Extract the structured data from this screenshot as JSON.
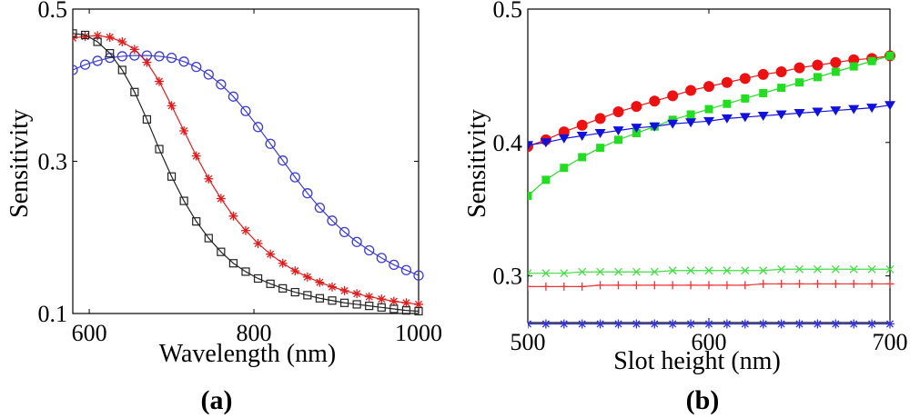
{
  "chart_data": [
    {
      "type": "line",
      "panel_label": "(a)",
      "xlabel": "Wavelength (nm)",
      "ylabel": "Sensitivity",
      "xlim": [
        580,
        1000
      ],
      "ylim": [
        0.1,
        0.5
      ],
      "xticks": [
        600,
        800,
        1000
      ],
      "yticks": [
        0.1,
        0.3,
        0.5
      ],
      "ytick_labels": [
        "0.1",
        "0.3",
        "0.5"
      ],
      "grid": false,
      "series": [
        {
          "color": "#3b3bd6",
          "marker": "circle",
          "x": [
            580,
            595,
            610,
            625,
            640,
            655,
            670,
            685,
            700,
            715,
            730,
            745,
            760,
            775,
            790,
            805,
            820,
            835,
            850,
            865,
            880,
            895,
            910,
            925,
            940,
            955,
            970,
            985,
            1000
          ],
          "values": [
            0.42,
            0.427,
            0.432,
            0.436,
            0.438,
            0.439,
            0.439,
            0.438,
            0.436,
            0.431,
            0.424,
            0.414,
            0.401,
            0.385,
            0.366,
            0.345,
            0.323,
            0.301,
            0.279,
            0.258,
            0.239,
            0.222,
            0.207,
            0.194,
            0.183,
            0.173,
            0.164,
            0.157,
            0.15
          ]
        },
        {
          "color": "#e01c1c",
          "marker": "star",
          "x": [
            580,
            595,
            610,
            625,
            640,
            655,
            670,
            685,
            700,
            715,
            730,
            745,
            760,
            775,
            790,
            805,
            820,
            835,
            850,
            865,
            880,
            895,
            910,
            925,
            940,
            955,
            970,
            985,
            1000
          ],
          "values": [
            0.462,
            0.464,
            0.465,
            0.463,
            0.457,
            0.447,
            0.43,
            0.405,
            0.373,
            0.34,
            0.307,
            0.277,
            0.251,
            0.228,
            0.209,
            0.192,
            0.178,
            0.166,
            0.156,
            0.148,
            0.141,
            0.135,
            0.13,
            0.126,
            0.122,
            0.119,
            0.116,
            0.114,
            0.112
          ]
        },
        {
          "color": "#222222",
          "marker": "square",
          "x": [
            580,
            595,
            610,
            625,
            640,
            655,
            670,
            685,
            700,
            715,
            730,
            745,
            760,
            775,
            790,
            805,
            820,
            835,
            850,
            865,
            880,
            895,
            910,
            925,
            940,
            955,
            970,
            985,
            1000
          ],
          "values": [
            0.468,
            0.466,
            0.457,
            0.442,
            0.42,
            0.391,
            0.355,
            0.316,
            0.28,
            0.248,
            0.221,
            0.199,
            0.181,
            0.166,
            0.155,
            0.146,
            0.139,
            0.133,
            0.128,
            0.124,
            0.12,
            0.117,
            0.114,
            0.112,
            0.11,
            0.108,
            0.106,
            0.104,
            0.103
          ]
        }
      ]
    },
    {
      "type": "line",
      "panel_label": "(b)",
      "xlabel": "Slot height (nm)",
      "ylabel": "Sensitivity",
      "xlim": [
        500,
        700
      ],
      "ylim": [
        0.265,
        0.5
      ],
      "xticks": [
        500,
        600,
        700
      ],
      "yticks": [
        0.3,
        0.4,
        0.5
      ],
      "ytick_labels": [
        "0.3",
        "0.4",
        "0.5"
      ],
      "grid": false,
      "series": [
        {
          "color": "#ee1111",
          "marker": "filled-circle",
          "x": [
            500,
            510,
            520,
            530,
            540,
            550,
            560,
            570,
            580,
            590,
            600,
            610,
            620,
            630,
            640,
            650,
            660,
            670,
            680,
            690,
            700
          ],
          "values": [
            0.397,
            0.402,
            0.408,
            0.413,
            0.418,
            0.423,
            0.427,
            0.431,
            0.435,
            0.439,
            0.442,
            0.445,
            0.448,
            0.451,
            0.453,
            0.456,
            0.458,
            0.46,
            0.462,
            0.463,
            0.465
          ]
        },
        {
          "color": "#22dd22",
          "marker": "filled-square",
          "x": [
            500,
            510,
            520,
            530,
            540,
            550,
            560,
            570,
            580,
            590,
            600,
            610,
            620,
            630,
            640,
            650,
            660,
            670,
            680,
            690,
            700
          ],
          "values": [
            0.36,
            0.372,
            0.381,
            0.389,
            0.396,
            0.402,
            0.407,
            0.412,
            0.417,
            0.421,
            0.425,
            0.429,
            0.433,
            0.437,
            0.441,
            0.445,
            0.449,
            0.453,
            0.457,
            0.461,
            0.465
          ]
        },
        {
          "color": "#1111dd",
          "marker": "filled-triangle-down",
          "x": [
            500,
            510,
            520,
            530,
            540,
            550,
            560,
            570,
            580,
            590,
            600,
            610,
            620,
            630,
            640,
            650,
            660,
            670,
            680,
            690,
            700
          ],
          "values": [
            0.398,
            0.4,
            0.403,
            0.405,
            0.407,
            0.409,
            0.411,
            0.412,
            0.414,
            0.415,
            0.416,
            0.418,
            0.419,
            0.42,
            0.421,
            0.422,
            0.423,
            0.424,
            0.425,
            0.426,
            0.428
          ]
        },
        {
          "color": "#44dd44",
          "marker": "x",
          "x": [
            500,
            510,
            520,
            530,
            540,
            550,
            560,
            570,
            580,
            590,
            600,
            610,
            620,
            630,
            640,
            650,
            660,
            670,
            680,
            690,
            700
          ],
          "values": [
            0.302,
            0.302,
            0.302,
            0.303,
            0.303,
            0.303,
            0.303,
            0.303,
            0.304,
            0.304,
            0.304,
            0.304,
            0.304,
            0.304,
            0.305,
            0.305,
            0.305,
            0.305,
            0.305,
            0.305,
            0.305
          ]
        },
        {
          "color": "#ee3333",
          "marker": "plus",
          "x": [
            500,
            510,
            520,
            530,
            540,
            550,
            560,
            570,
            580,
            590,
            600,
            610,
            620,
            630,
            640,
            650,
            660,
            670,
            680,
            690,
            700
          ],
          "values": [
            0.292,
            0.292,
            0.292,
            0.292,
            0.293,
            0.293,
            0.293,
            0.293,
            0.293,
            0.293,
            0.293,
            0.293,
            0.293,
            0.294,
            0.294,
            0.294,
            0.294,
            0.294,
            0.294,
            0.294,
            0.294
          ]
        },
        {
          "color": "#3333dd",
          "marker": "star",
          "x": [
            500,
            510,
            520,
            530,
            540,
            550,
            560,
            570,
            580,
            590,
            600,
            610,
            620,
            630,
            640,
            650,
            660,
            670,
            680,
            690,
            700
          ],
          "values": [
            0.264,
            0.264,
            0.264,
            0.264,
            0.264,
            0.264,
            0.264,
            0.264,
            0.264,
            0.264,
            0.264,
            0.264,
            0.264,
            0.264,
            0.264,
            0.264,
            0.264,
            0.264,
            0.264,
            0.264,
            0.264
          ]
        }
      ]
    }
  ]
}
